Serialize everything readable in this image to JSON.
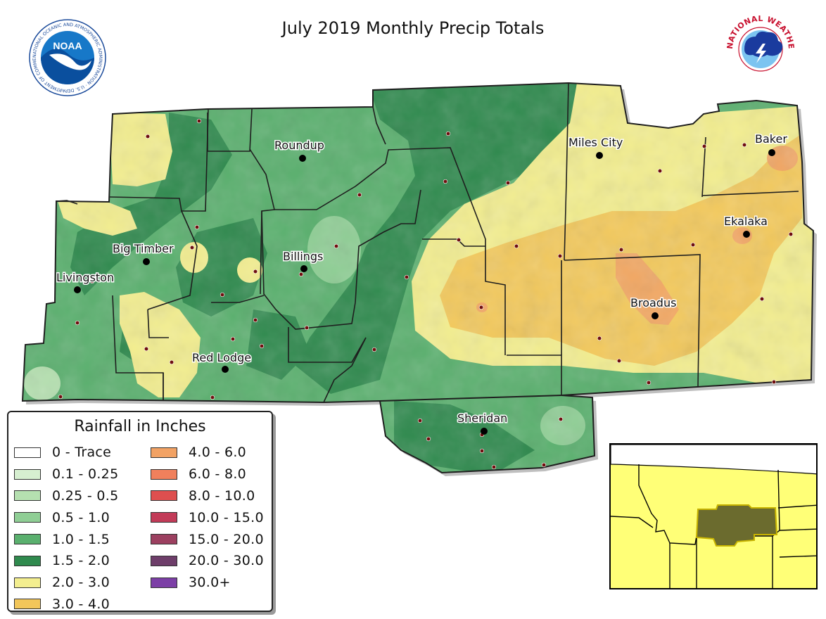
{
  "title": "July 2019 Monthly Precip Totals",
  "logos": {
    "noaa": {
      "text": "NOAA",
      "ring_text": "NATIONAL OCEANIC AND ATMOSPHERIC ADMINISTRATION · U.S. DEPARTMENT OF COMMERCE"
    },
    "nws": {
      "ring_text": "NATIONAL WEATHER SERVICE"
    }
  },
  "cities": [
    {
      "name": "Roundup"
    },
    {
      "name": "Miles City"
    },
    {
      "name": "Baker"
    },
    {
      "name": "Big Timber"
    },
    {
      "name": "Billings"
    },
    {
      "name": "Livingston"
    },
    {
      "name": "Ekalaka"
    },
    {
      "name": "Broadus"
    },
    {
      "name": "Red Lodge"
    },
    {
      "name": "Sheridan"
    }
  ],
  "legend": {
    "title": "Rainfall in Inches",
    "items": [
      {
        "label": "0 - Trace",
        "color": "#ffffff"
      },
      {
        "label": "0.1 - 0.25",
        "color": "#d6efd0"
      },
      {
        "label": "0.25 - 0.5",
        "color": "#b5e0b0"
      },
      {
        "label": "0.5 - 1.0",
        "color": "#8fce95"
      },
      {
        "label": "1.0 - 1.5",
        "color": "#5ab06e"
      },
      {
        "label": "1.5 - 2.0",
        "color": "#2f8a4e"
      },
      {
        "label": "2.0 - 3.0",
        "color": "#f3ee8f"
      },
      {
        "label": "3.0 - 4.0",
        "color": "#f2c65a"
      },
      {
        "label": "4.0 - 6.0",
        "color": "#f2a264"
      },
      {
        "label": "6.0 - 8.0",
        "color": "#f0805c"
      },
      {
        "label": "8.0 - 10.0",
        "color": "#de4f4f"
      },
      {
        "label": "10.0 - 15.0",
        "color": "#c23b58"
      },
      {
        "label": "15.0 - 20.0",
        "color": "#9c4060"
      },
      {
        "label": "20.0 - 30.0",
        "color": "#6e3e6a"
      },
      {
        "label": "30.0+",
        "color": "#7c3fa6"
      }
    ]
  },
  "inset": {
    "background_color": "#ffff77",
    "highlight_color": "#6b6b2e"
  }
}
